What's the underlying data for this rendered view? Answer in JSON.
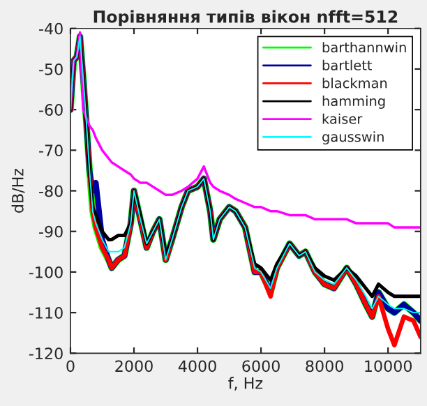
{
  "chart_data": {
    "type": "line",
    "title": "Порівняння типів вікон nfft=512",
    "xlabel": "f, Hz",
    "ylabel": "dB/Hz",
    "x": [
      0,
      100,
      200,
      300,
      400,
      500,
      600,
      700,
      800,
      1000,
      1200,
      1300,
      1500,
      1700,
      1900,
      2000,
      2200,
      2400,
      2600,
      2800,
      3000,
      3200,
      3500,
      3700,
      4000,
      4200,
      4400,
      4500,
      4700,
      5000,
      5200,
      5500,
      5800,
      6000,
      6300,
      6500,
      6900,
      7200,
      7400,
      7700,
      8000,
      8300,
      8700,
      9000,
      9300,
      9500,
      9700,
      10000,
      10200,
      10500,
      10800,
      11025
    ],
    "series": [
      {
        "name": "barthannwin",
        "color": "#00ff00",
        "values": [
          -60,
          -48,
          -47,
          -42,
          -52,
          -63,
          -75,
          -85,
          -89,
          -94,
          -97,
          -99,
          -97,
          -96,
          -88,
          -80,
          -87,
          -94,
          -90,
          -87,
          -97,
          -92,
          -84,
          -80,
          -79,
          -77,
          -85,
          -92,
          -87,
          -84,
          -85,
          -89,
          -100,
          -100,
          -105,
          -99,
          -93,
          -96,
          -95,
          -100,
          -103,
          -104,
          -99,
          -103,
          -108,
          -111,
          -105,
          -109,
          -110,
          -108,
          -110,
          -112
        ]
      },
      {
        "name": "bartlett",
        "color": "#0000a0",
        "values": [
          -60,
          -48,
          -47,
          -42,
          -52,
          -63,
          -75,
          -80,
          -78,
          -92,
          -97,
          -99,
          -97,
          -96,
          -88,
          -80,
          -87,
          -94,
          -90,
          -87,
          -97,
          -92,
          -84,
          -80,
          -79,
          -77,
          -85,
          -92,
          -87,
          -84,
          -85,
          -89,
          -100,
          -100,
          -105,
          -99,
          -93,
          -96,
          -95,
          -100,
          -103,
          -104,
          -99,
          -103,
          -108,
          -111,
          -105,
          -109,
          -110,
          -108,
          -110,
          -112
        ]
      },
      {
        "name": "blackman",
        "color": "#ff0000",
        "values": [
          -60,
          -48,
          -47,
          -42,
          -52,
          -63,
          -75,
          -85,
          -89,
          -94,
          -97,
          -99,
          -97,
          -96,
          -88,
          -80,
          -87,
          -94,
          -90,
          -87,
          -97,
          -92,
          -84,
          -80,
          -79,
          -77,
          -85,
          -92,
          -87,
          -84,
          -85,
          -89,
          -100,
          -100,
          -106,
          -99,
          -93,
          -96,
          -95,
          -100,
          -103,
          -104,
          -99,
          -103,
          -108,
          -111,
          -106,
          -114,
          -118,
          -111,
          -112,
          -116
        ]
      },
      {
        "name": "hamming",
        "color": "#000000",
        "values": [
          -60,
          -48,
          -47,
          -42,
          -52,
          -63,
          -75,
          -84,
          -86,
          -90,
          -92,
          -92,
          -91,
          -91,
          -88,
          -80,
          -86,
          -93,
          -90,
          -87,
          -96,
          -92,
          -84,
          -80,
          -79,
          -77,
          -85,
          -92,
          -87,
          -84,
          -85,
          -89,
          -98,
          -99,
          -102,
          -98,
          -93,
          -96,
          -95,
          -99,
          -101,
          -102,
          -99,
          -101,
          -104,
          -106,
          -103,
          -105,
          -106,
          -106,
          -106,
          -106
        ]
      },
      {
        "name": "kaiser",
        "color": "#ff00ff",
        "values": [
          -60,
          -48,
          -47,
          -41,
          -60,
          -62,
          -64,
          -65,
          -67,
          -70,
          -72,
          -73,
          -74,
          -75,
          -76,
          -77,
          -78,
          -78,
          -79,
          -80,
          -81,
          -81,
          -80,
          -79,
          -77,
          -74,
          -78,
          -79,
          -80,
          -81,
          -82,
          -83,
          -84,
          -84,
          -85,
          -85,
          -86,
          -86,
          -86,
          -87,
          -87,
          -87,
          -87,
          -88,
          -88,
          -88,
          -88,
          -88,
          -89,
          -89,
          -89,
          -89
        ]
      },
      {
        "name": "gausswin",
        "color": "#00ffff",
        "values": [
          -60,
          -48,
          -47,
          -42,
          -52,
          -63,
          -75,
          -85,
          -88,
          -92,
          -95,
          -95,
          -95,
          -94,
          -88,
          -80,
          -87,
          -93,
          -90,
          -87,
          -97,
          -92,
          -84,
          -80,
          -79,
          -77,
          -85,
          -92,
          -87,
          -84,
          -85,
          -89,
          -99,
          -100,
          -104,
          -99,
          -93,
          -96,
          -95,
          -100,
          -102,
          -103,
          -99,
          -102,
          -106,
          -109,
          -106,
          -108,
          -109,
          -109,
          -110,
          -110
        ]
      }
    ],
    "xlim": [
      0,
      11025
    ],
    "xticks": [
      0,
      2000,
      4000,
      6000,
      8000,
      10000
    ],
    "ylim": [
      -120,
      -40
    ],
    "yticks": [
      -120,
      -110,
      -100,
      -90,
      -80,
      -70,
      -60,
      -50,
      -40
    ],
    "legend": "top right",
    "grid": false
  }
}
